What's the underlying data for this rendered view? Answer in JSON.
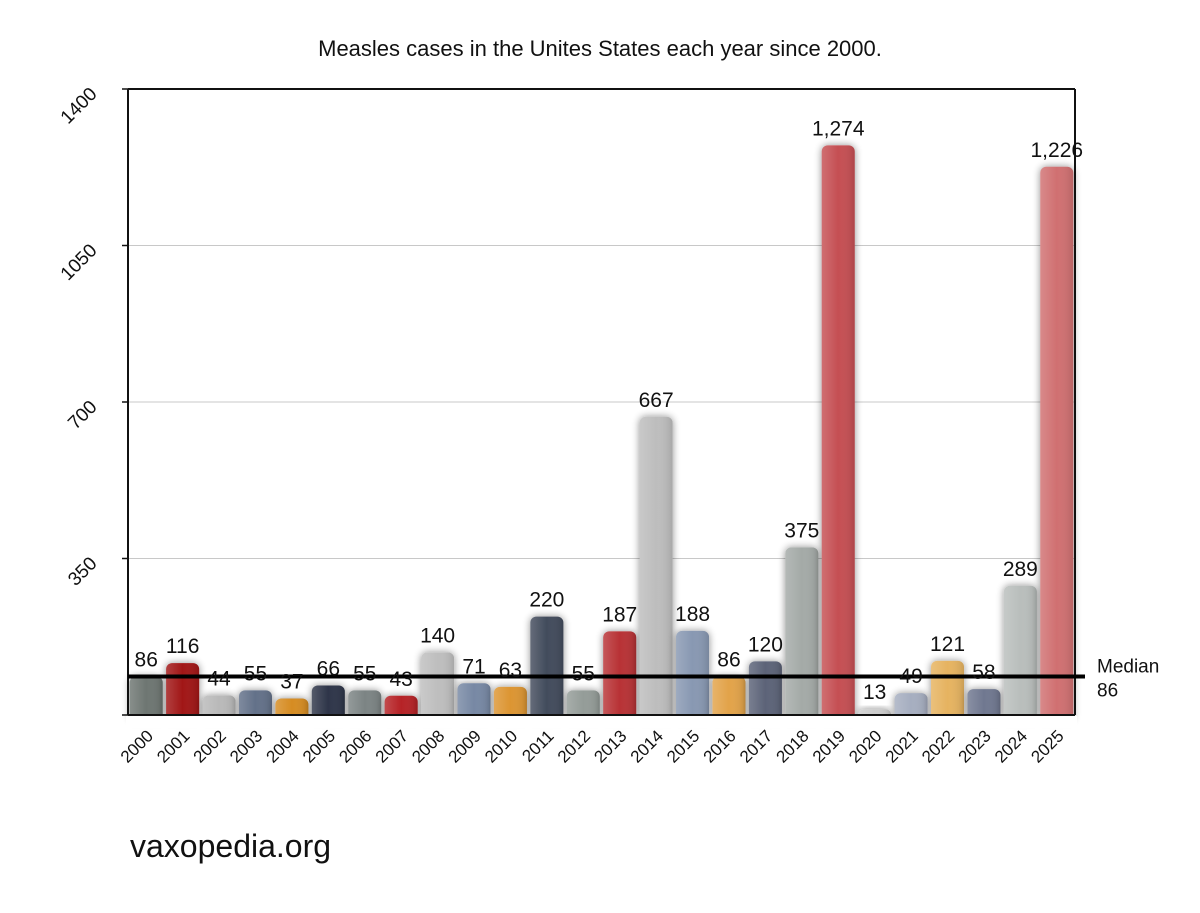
{
  "chart_data": {
    "type": "bar",
    "title": "Measles cases in the Unites States each year since 2000.",
    "xlabel": "",
    "ylabel": "",
    "ylim": [
      0,
      1400
    ],
    "yticks": [
      "350",
      "700",
      "1050",
      "1400"
    ],
    "grid": true,
    "categories": [
      "2000",
      "2001",
      "2002",
      "2003",
      "2004",
      "2005",
      "2006",
      "2007",
      "2008",
      "2009",
      "2010",
      "2011",
      "2012",
      "2013",
      "2014",
      "2015",
      "2016",
      "2017",
      "2018",
      "2019",
      "2020",
      "2021",
      "2022",
      "2023",
      "2024",
      "2025"
    ],
    "values": [
      86,
      116,
      44,
      55,
      37,
      66,
      55,
      43,
      140,
      71,
      63,
      220,
      55,
      187,
      667,
      188,
      86,
      120,
      375,
      1274,
      13,
      49,
      121,
      58,
      289,
      1226
    ],
    "value_labels": [
      "86",
      "116",
      "44",
      "55",
      "37",
      "66",
      "55",
      "43",
      "140",
      "71",
      "63",
      "220",
      "55",
      "187",
      "667",
      "188",
      "86",
      "120",
      "375",
      "1,274",
      "13",
      "49",
      "121",
      "58",
      "289",
      "1,226"
    ],
    "bar_colors": [
      "#6e7672",
      "#a11416",
      "#b9b9b9",
      "#637189",
      "#d68c20",
      "#2f3648",
      "#7c8484",
      "#b62025",
      "#bebebe",
      "#7788a4",
      "#dc9530",
      "#434b5c",
      "#949c98",
      "#b83236",
      "#bdbdbd",
      "#8898b2",
      "#e2a349",
      "#5b6378",
      "#a4aaa7",
      "#c55053",
      "#cccccc",
      "#a6aec0",
      "#e6b361",
      "#707890",
      "#b9bebc",
      "#d06f71"
    ],
    "median": {
      "value": 86,
      "label": "Median",
      "value_label": "86"
    }
  },
  "footer": {
    "credit": "vaxopedia.org"
  }
}
